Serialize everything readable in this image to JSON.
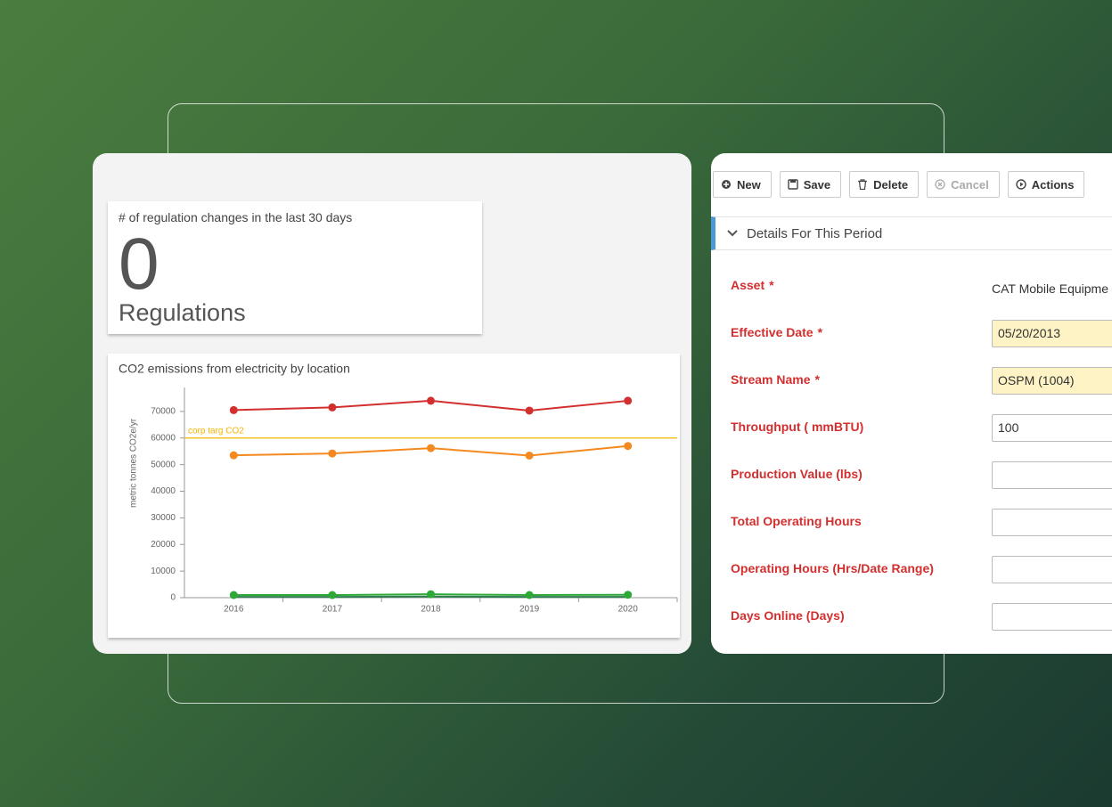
{
  "regulations": {
    "title": "# of regulation changes in the last 30 days",
    "count": 0,
    "unit": "Regulations"
  },
  "chart_data": {
    "type": "line",
    "title": "CO2 emissions from electricity by location",
    "y_label": "metric tonnes CO2e/yr",
    "categories": [
      "2016",
      "2017",
      "2018",
      "2019",
      "2020"
    ],
    "series": [
      {
        "color": "#d32f2f",
        "values": [
          70500,
          71500,
          74000,
          70300,
          74000
        ],
        "markers": true
      },
      {
        "color": "#f5891f",
        "values": [
          53500,
          54200,
          56200,
          53400,
          57000
        ],
        "markers": true
      },
      {
        "color": "#2e7d4f",
        "values": [
          300,
          300,
          400,
          300,
          300
        ],
        "markers": false
      },
      {
        "color": "#2ea836",
        "values": [
          1000,
          1000,
          1300,
          1000,
          1100
        ],
        "markers": true
      }
    ],
    "reference_line": {
      "value": 60000,
      "label": "corp targ CO2",
      "color": "#f5b400"
    },
    "ylim": [
      0,
      79000
    ],
    "yticks": [
      0,
      10000,
      20000,
      30000,
      40000,
      50000,
      60000,
      70000
    ],
    "grid": false
  },
  "toolbar": [
    {
      "label": "New",
      "enabled": true
    },
    {
      "label": "Save",
      "enabled": true
    },
    {
      "label": "Delete",
      "enabled": true
    },
    {
      "label": "Cancel",
      "enabled": false
    },
    {
      "label": "Actions",
      "enabled": true
    }
  ],
  "section": {
    "title": "Details For This Period"
  },
  "fields": [
    {
      "label": "Asset",
      "marker": "*",
      "kind": "text",
      "value": "CAT Mobile Equipme"
    },
    {
      "label": "Effective Date",
      "marker": "*",
      "kind": "input",
      "highlight": true,
      "value": "05/20/2013"
    },
    {
      "label": "Stream Name",
      "marker": "*",
      "kind": "input",
      "highlight": true,
      "value": "OSPM (1004)"
    },
    {
      "label": "Throughput ( mmBTU)",
      "kind": "input",
      "value": "100"
    },
    {
      "label": "Production Value (lbs)",
      "kind": "input"
    },
    {
      "label": "Total Operating Hours",
      "kind": "input"
    },
    {
      "label": "Operating Hours (Hrs/Date Range)",
      "kind": "input"
    },
    {
      "label": "Days Online (Days)",
      "kind": "input"
    }
  ]
}
